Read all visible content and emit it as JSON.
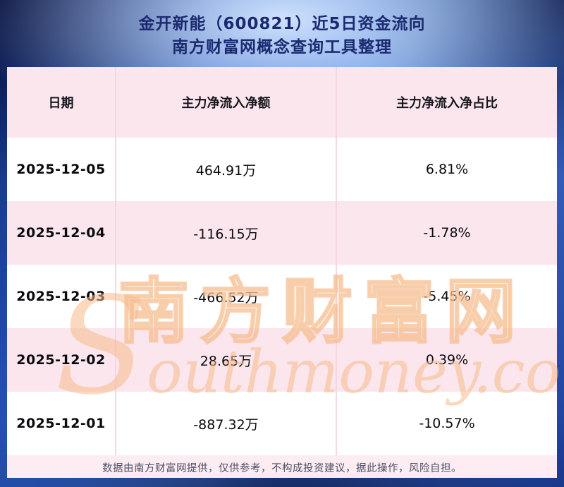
{
  "title": {
    "line1": "金开新能（600821）近5日资金流向",
    "line2": "南方财富网概念查询工具整理"
  },
  "chart_data": {
    "type": "table",
    "title": "金开新能（600821）近5日资金流向",
    "columns": [
      "日期",
      "主力净流入净额",
      "主力净流入净占比"
    ],
    "rows": [
      [
        "2025-12-05",
        "464.91万",
        "6.81%"
      ],
      [
        "2025-12-04",
        "-116.15万",
        "-1.78%"
      ],
      [
        "2025-12-03",
        "-466.52万",
        "-5.45%"
      ],
      [
        "2025-12-02",
        "28.65万",
        "0.39%"
      ],
      [
        "2025-12-01",
        "-887.32万",
        "-10.57%"
      ]
    ]
  },
  "watermark": {
    "cn": "南方财富网",
    "en": "Southmoney.com"
  },
  "footer": {
    "text": "数据由南方财富网提供，仅供参考，不构成投资建议，据此操作，风险自担。"
  },
  "colors": {
    "title": "#1b2a70",
    "panel_pink": "#fdedf3",
    "row_pink": "#fbe6ee",
    "row_white": "#ffffff",
    "watermark": "#f6ba8a",
    "bg_blue": "#2d62c8"
  }
}
